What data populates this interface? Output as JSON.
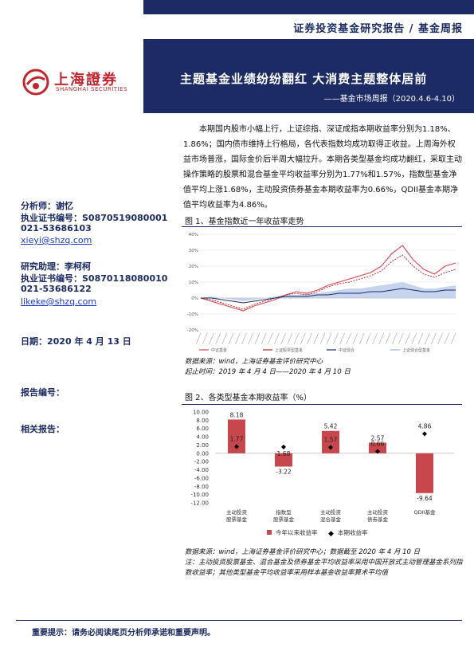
{
  "header": {
    "category": "证券投资基金研究报告 / 基金周报",
    "title": "主题基金业绩纷纷翻红 大消费主题整体居前",
    "subtitle": "——基金市场周报（2020.4.6-4.10）"
  },
  "logo": {
    "cn": "上海證券",
    "en": "SHANGHAI SECURITIES"
  },
  "analysts": {
    "analyst_label": "分析师：谢忆",
    "analyst_cert": "执业证书编号：S0870519080001",
    "analyst_phone": "021-53686103",
    "analyst_email": "xieyi@shzq.com",
    "assistant_label": "研究助理：李柯柯",
    "assistant_cert": "执业证书编号：S0870118080010",
    "assistant_phone": "021-53686122",
    "assistant_email": "likeke@shzq.com"
  },
  "meta": {
    "date": "日期：2020 年 4 月 13 日",
    "report_no": "报告编号：",
    "related": "相关报告："
  },
  "summary": "本期国内股市小幅上行，上证综指、深证成指本期收益率分别为1.18%、1.86%；国内债市维持上行格局，各代表指数均成功取得正收益。上周海外权益市场普涨，国际金价后半周大幅拉升。本期各类型基金均成功翻红，采取主动操作策略的股票和混合基金平均收益率分别为1.77%和1.57%，指数型基金净值平均上涨1.68%，主动投资债券基金本期收益率为0.66%，QDII基金本期净值平均收益率为4.86%。",
  "figure1": {
    "caption": "图 1、基金指数近一年收益率走势",
    "source1": "数据来源：wind，上海证券基金评价研究中心",
    "source2": "起止时间：2019 年 4 月 4 日——2020 年 4 月 10 日",
    "legend": [
      "中证基金",
      "上证股票型基金",
      "中证混合",
      "上证混合型基金"
    ]
  },
  "figure2": {
    "caption": "图 2、各类型基金本期收益率（%）",
    "legend_bar": "今年以来收益率",
    "legend_dot": "本期收益率",
    "source1": "数据来源：wind，上海证券基金评价研究中心；数据截至 2020 年 4 月 10 日",
    "source2": "注：主动投资股票基金、混合基金及债券基金平均收益率采用中国开放式主动管理基金系列指数收益率；其他类型基金平均收益率采用样本基金收益率算术平均值"
  },
  "chart_data": [
    {
      "type": "line",
      "title": "基金指数近一年收益率走势",
      "ylim": [
        -20,
        40
      ],
      "yticks": [
        "40%",
        "30%",
        "20%",
        "10%",
        "0%",
        "-10%",
        "-20%"
      ],
      "series": [
        {
          "name": "中证基金",
          "values": [
            0,
            -2,
            -4,
            -6,
            -8,
            -5,
            -3,
            -1,
            2,
            4,
            3,
            5,
            8,
            10,
            12,
            14,
            16,
            20,
            28,
            33,
            24,
            18,
            15,
            20,
            22
          ],
          "color": "#e04048"
        },
        {
          "name": "上证股票型基金",
          "values": [
            0,
            -1,
            -3,
            -5,
            -7,
            -4,
            -2,
            0,
            2,
            3,
            2,
            4,
            7,
            9,
            10,
            12,
            14,
            17,
            23,
            27,
            20,
            15,
            13,
            16,
            18
          ],
          "color": "#b0202a"
        },
        {
          "name": "中证混合",
          "values": [
            0,
            0,
            -1,
            -2,
            -3,
            -2,
            -1,
            0,
            1,
            1,
            1,
            2,
            2,
            3,
            3,
            3,
            4,
            4,
            5,
            6,
            5,
            4,
            4,
            5,
            5
          ],
          "color": "#1c2b63"
        },
        {
          "name": "上证混合型基金",
          "values": [
            0,
            1,
            0,
            -1,
            -2,
            -1,
            0,
            1,
            2,
            2,
            3,
            3,
            4,
            5,
            6,
            6,
            7,
            8,
            9,
            10,
            8,
            6,
            6,
            7,
            8
          ],
          "color": "#9ab4de"
        }
      ]
    },
    {
      "type": "bar",
      "title": "各类型基金本期收益率（%）",
      "categories": [
        "主动投资股票基金",
        "指数型股票基金",
        "主动投资混合基金",
        "主动投资债券基金",
        "QDII基金"
      ],
      "category_lines": [
        [
          "主动投资",
          "股票基金"
        ],
        [
          "指数型",
          "股票基金"
        ],
        [
          "主动投资",
          "混合基金"
        ],
        [
          "主动投资",
          "债券基金"
        ],
        [
          "QDII基金",
          ""
        ]
      ],
      "series": [
        {
          "name": "今年以来收益率",
          "values": [
            8.18,
            -3.22,
            5.42,
            2.57,
            -9.64
          ],
          "color": "#c8474d"
        },
        {
          "name": "本期收益率",
          "values": [
            1.77,
            1.68,
            1.57,
            0.66,
            4.86
          ],
          "color": "#000000"
        }
      ],
      "ylim": [
        -12,
        10
      ],
      "yticks": [
        "10.00",
        "8.00",
        "6.00",
        "4.00",
        "2.00",
        "0.00",
        "-2.00",
        "-4.00",
        "-6.00",
        "-8.00",
        "-10.00",
        "-12.00"
      ]
    }
  ],
  "footer": "重要提示：请务必阅读尾页分析师承诺和重要声明。"
}
